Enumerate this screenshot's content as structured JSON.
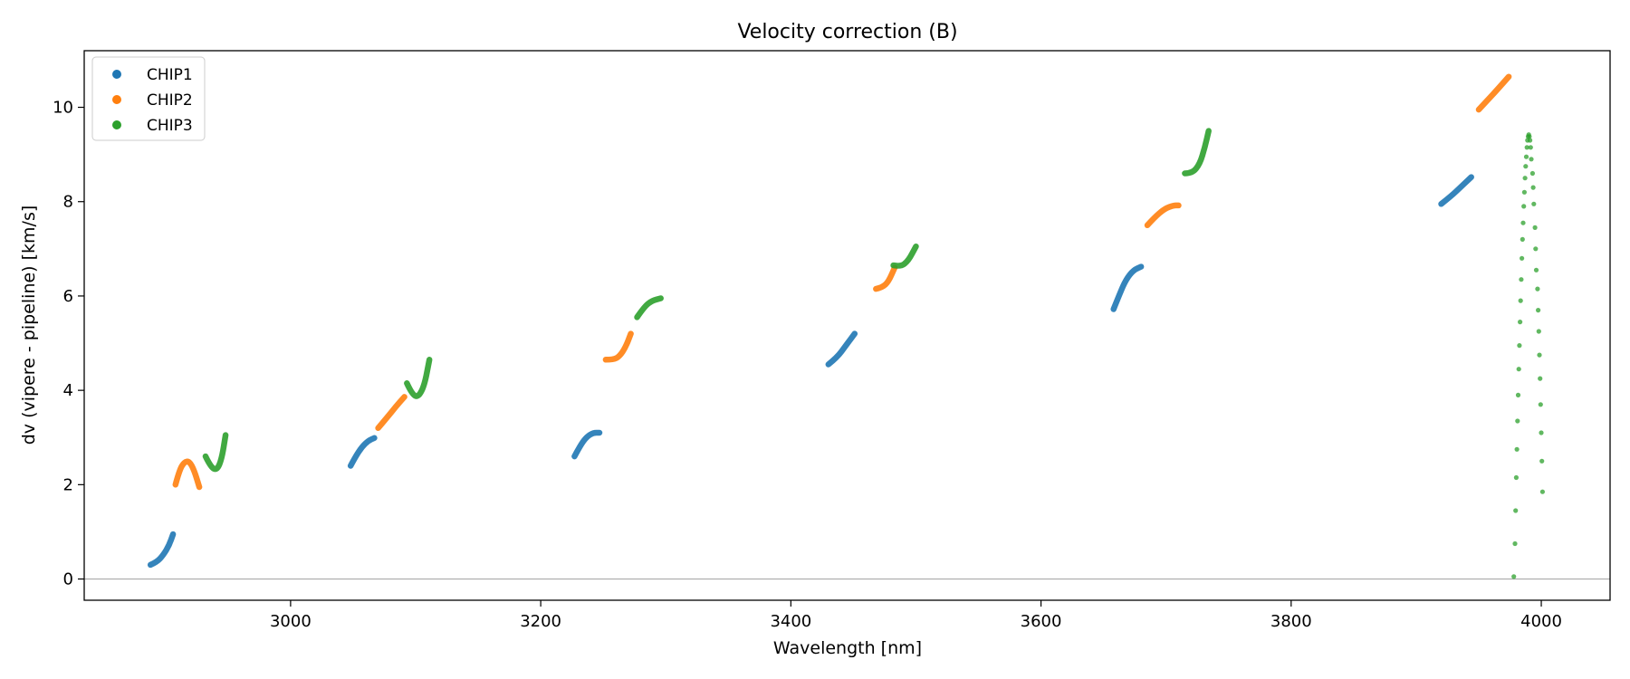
{
  "chart_data": {
    "type": "scatter",
    "title": "Velocity correction (B)",
    "xlabel": "Wavelength [nm]",
    "ylabel": "dv (vipere - pipeline) [km/s]",
    "xlim": [
      2835,
      4055
    ],
    "ylim": [
      -0.45,
      11.2
    ],
    "xticks": [
      3000,
      3200,
      3400,
      3600,
      3800,
      4000
    ],
    "yticks": [
      0,
      2,
      4,
      6,
      8,
      10
    ],
    "grid": false,
    "reference_line": {
      "y": 0,
      "color": "#aaaaaa"
    },
    "legend": {
      "placement": "top-left",
      "entries": [
        "CHIP1",
        "CHIP2",
        "CHIP3"
      ]
    },
    "series": [
      {
        "name": "CHIP1",
        "color": "#1f77b4",
        "segments": [
          [
            [
              2888,
              0.3
            ],
            [
              2893,
              0.36
            ],
            [
              2898,
              0.5
            ],
            [
              2903,
              0.72
            ],
            [
              2906,
              0.95
            ]
          ],
          [
            [
              3048,
              2.4
            ],
            [
              3052,
              2.6
            ],
            [
              3057,
              2.8
            ],
            [
              3062,
              2.93
            ],
            [
              3067,
              2.99
            ]
          ],
          [
            [
              3227,
              2.6
            ],
            [
              3232,
              2.85
            ],
            [
              3237,
              3.02
            ],
            [
              3242,
              3.1
            ],
            [
              3247,
              3.1
            ]
          ],
          [
            [
              3430,
              4.55
            ],
            [
              3437,
              4.7
            ],
            [
              3444,
              4.95
            ],
            [
              3451,
              5.2
            ]
          ],
          [
            [
              3658,
              5.72
            ],
            [
              3663,
              6.05
            ],
            [
              3668,
              6.35
            ],
            [
              3674,
              6.55
            ],
            [
              3680,
              6.62
            ]
          ],
          [
            [
              3920,
              7.95
            ],
            [
              3928,
              8.12
            ],
            [
              3936,
              8.32
            ],
            [
              3944,
              8.52
            ]
          ]
        ]
      },
      {
        "name": "CHIP2",
        "color": "#ff7f0e",
        "segments": [
          [
            [
              2908,
              2.0
            ],
            [
              2911,
              2.3
            ],
            [
              2915,
              2.48
            ],
            [
              2919,
              2.5
            ],
            [
              2923,
              2.3
            ],
            [
              2927,
              1.95
            ]
          ],
          [
            [
              3070,
              3.2
            ],
            [
              3077,
              3.42
            ],
            [
              3084,
              3.65
            ],
            [
              3091,
              3.86
            ]
          ],
          [
            [
              3252,
              4.65
            ],
            [
              3258,
              4.65
            ],
            [
              3263,
              4.72
            ],
            [
              3268,
              4.92
            ],
            [
              3272,
              5.2
            ]
          ],
          [
            [
              3468,
              6.15
            ],
            [
              3473,
              6.18
            ],
            [
              3478,
              6.3
            ],
            [
              3483,
              6.6
            ]
          ],
          [
            [
              3685,
              7.5
            ],
            [
              3692,
              7.7
            ],
            [
              3699,
              7.85
            ],
            [
              3706,
              7.92
            ],
            [
              3710,
              7.92
            ]
          ],
          [
            [
              3950,
              9.95
            ],
            [
              3957,
              10.15
            ],
            [
              3965,
              10.38
            ],
            [
              3974,
              10.65
            ]
          ]
        ]
      },
      {
        "name": "CHIP3",
        "color": "#2ca02c",
        "segments": [
          [
            [
              2932,
              2.6
            ],
            [
              2936,
              2.38
            ],
            [
              2941,
              2.3
            ],
            [
              2945,
              2.55
            ],
            [
              2948,
              3.05
            ]
          ],
          [
            [
              3093,
              4.15
            ],
            [
              3097,
              3.92
            ],
            [
              3102,
              3.85
            ],
            [
              3107,
              4.1
            ],
            [
              3111,
              4.65
            ]
          ],
          [
            [
              3277,
              5.55
            ],
            [
              3283,
              5.78
            ],
            [
              3289,
              5.9
            ],
            [
              3296,
              5.95
            ]
          ],
          [
            [
              3482,
              6.65
            ],
            [
              3488,
              6.62
            ],
            [
              3494,
              6.75
            ],
            [
              3500,
              7.05
            ]
          ],
          [
            [
              3715,
              8.6
            ],
            [
              3721,
              8.6
            ],
            [
              3727,
              8.8
            ],
            [
              3731,
              9.15
            ],
            [
              3734,
              9.5
            ]
          ]
        ],
        "scatter": [
          [
            3978,
            0.05
          ],
          [
            3979,
            0.75
          ],
          [
            3979.5,
            1.45
          ],
          [
            3980,
            2.15
          ],
          [
            3980.5,
            2.75
          ],
          [
            3981,
            3.35
          ],
          [
            3981.5,
            3.9
          ],
          [
            3982,
            4.45
          ],
          [
            3982.5,
            4.95
          ],
          [
            3983,
            5.45
          ],
          [
            3983.5,
            5.9
          ],
          [
            3984,
            6.35
          ],
          [
            3984.5,
            6.8
          ],
          [
            3985,
            7.2
          ],
          [
            3985.5,
            7.55
          ],
          [
            3986,
            7.9
          ],
          [
            3986.5,
            8.2
          ],
          [
            3987,
            8.5
          ],
          [
            3987.5,
            8.75
          ],
          [
            3988,
            8.95
          ],
          [
            3988.5,
            9.15
          ],
          [
            3989,
            9.3
          ],
          [
            3989.5,
            9.38
          ],
          [
            3990,
            9.42
          ],
          [
            3990.5,
            9.38
          ],
          [
            3991,
            9.3
          ],
          [
            3991.5,
            9.15
          ],
          [
            3992,
            8.9
          ],
          [
            3993,
            8.6
          ],
          [
            3993.5,
            8.3
          ],
          [
            3994,
            7.95
          ],
          [
            3995,
            7.45
          ],
          [
            3995.5,
            7.0
          ],
          [
            3996,
            6.55
          ],
          [
            3997,
            6.15
          ],
          [
            3997.5,
            5.7
          ],
          [
            3998,
            5.25
          ],
          [
            3998.5,
            4.75
          ],
          [
            3999,
            4.25
          ],
          [
            3999.5,
            3.7
          ],
          [
            4000,
            3.1
          ],
          [
            4000.5,
            2.5
          ],
          [
            4001,
            1.85
          ]
        ]
      }
    ]
  }
}
